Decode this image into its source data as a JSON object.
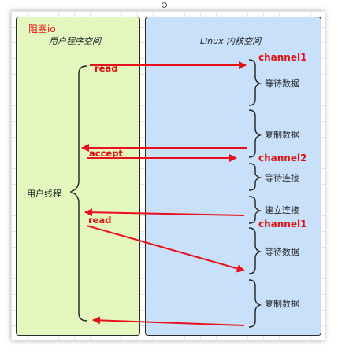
{
  "title": "阻塞io",
  "user_space": {
    "title": "用户程序空间",
    "thread_label": "用户线程",
    "calls": [
      "read",
      "accept",
      "read"
    ]
  },
  "kernel_space": {
    "title": "Linux 内核空间",
    "channels": [
      "channel1",
      "channel2",
      "channel1"
    ],
    "phases": [
      "等待数据",
      "复制数据",
      "等待连接",
      "建立连接",
      "等待数据",
      "复制数据"
    ]
  },
  "colors": {
    "user_panel": "#e3f7bf",
    "kernel_panel": "#c9e0fb",
    "arrow": "#e8101a",
    "title": "#ee1111"
  }
}
